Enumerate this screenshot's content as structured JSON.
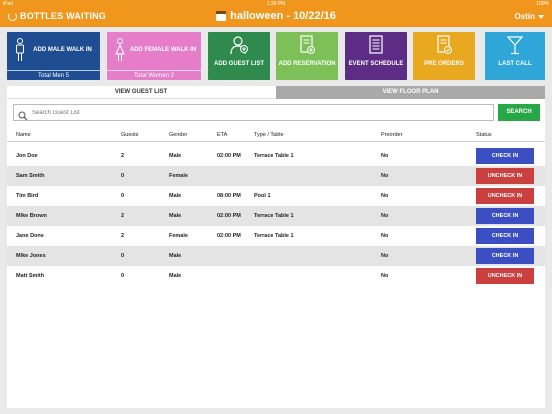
{
  "status_bar": {
    "device": "iPad",
    "time": "1:39 PM",
    "battery": "100%"
  },
  "header": {
    "brand": "BOTTLES WAITING",
    "event_title": "halloween - 10/22/16",
    "user": "Ostin"
  },
  "tiles": {
    "male": {
      "label": "ADD MALE WALK IN",
      "sub": "Total Men 5",
      "color": "#1e4d92"
    },
    "female": {
      "label": "ADD FEMALE WALK IN",
      "sub": "Total Women 2",
      "color": "#e57dc9"
    },
    "guest_list": {
      "label": "ADD GUEST LIST",
      "color": "#2f8a4e"
    },
    "reservation": {
      "label": "ADD RESERVATION",
      "color": "#7dc057"
    },
    "event": {
      "label": "EVENT SCHEDULE",
      "color": "#5d2d86"
    },
    "preorders": {
      "label": "PRE ORDERS",
      "color": "#e8a81f"
    },
    "last_call": {
      "label": "LAST CALL",
      "color": "#2ea7d8"
    }
  },
  "tabs": {
    "guest_list": "VIEW GUEST LIST",
    "floor_plan": "VIEW FLOOR PLAN"
  },
  "search": {
    "placeholder": "Search Guest List",
    "button": "SEARCH"
  },
  "table": {
    "headers": {
      "name": "Name",
      "guests": "Guests",
      "gender": "Gender",
      "eta": "ETA",
      "type": "Type / Table",
      "preorder": "Preorder",
      "status": "Status"
    },
    "rows": [
      {
        "name": "Jon Doe",
        "guests": "2",
        "gender": "Male",
        "eta": "02:00 PM",
        "type": "Terrace Table 1",
        "preorder": "No",
        "status": "CHECK IN"
      },
      {
        "name": "Sam Smith",
        "guests": "0",
        "gender": "Female",
        "eta": "",
        "type": "",
        "preorder": "No",
        "status": "UNCHECK IN"
      },
      {
        "name": "Tim Bird",
        "guests": "0",
        "gender": "Male",
        "eta": "08:00 PM",
        "type": "Pool 1",
        "preorder": "No",
        "status": "UNCHECK IN"
      },
      {
        "name": "Mike Brown",
        "guests": "2",
        "gender": "Male",
        "eta": "02:00 PM",
        "type": "Terrace Table 1",
        "preorder": "No",
        "status": "CHECK IN"
      },
      {
        "name": "Jane Done",
        "guests": "2",
        "gender": "Female",
        "eta": "02:00 PM",
        "type": "Terrace Table 1",
        "preorder": "No",
        "status": "CHECK IN"
      },
      {
        "name": "Mike Jones",
        "guests": "0",
        "gender": "Male",
        "eta": "",
        "type": "",
        "preorder": "No",
        "status": "CHECK IN"
      },
      {
        "name": "Matt Smith",
        "guests": "0",
        "gender": "Male",
        "eta": "",
        "type": "",
        "preorder": "No",
        "status": "UNCHECK IN"
      }
    ]
  }
}
